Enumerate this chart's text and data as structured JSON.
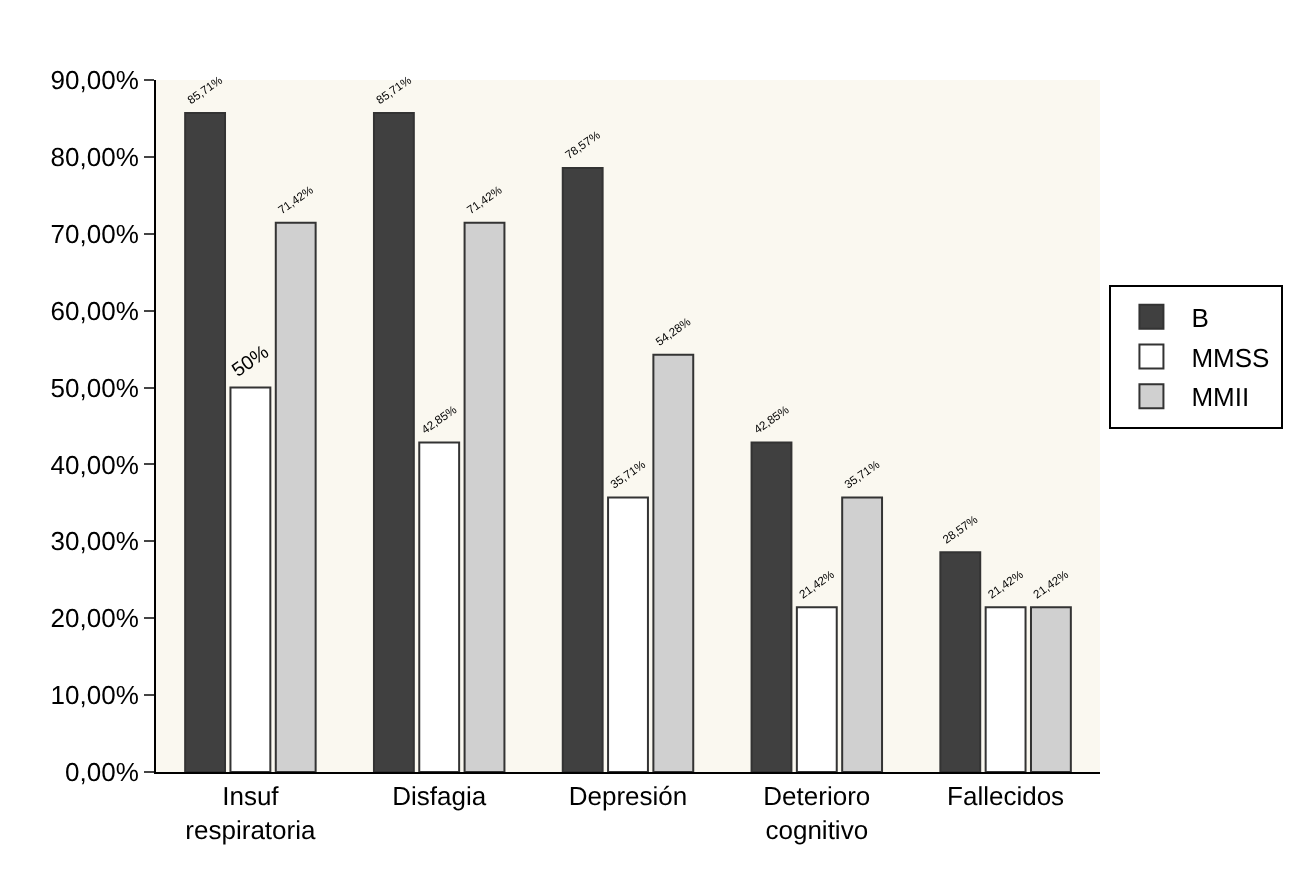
{
  "chart_data": {
    "type": "bar",
    "categories": [
      "Insuf respiratoria",
      "Disfagia",
      "Depresión",
      "Deterioro cognitivo",
      "Fallecidos"
    ],
    "series": [
      {
        "name": "B",
        "color": "#404040",
        "values": [
          85.71,
          85.71,
          78.57,
          42.85,
          28.57
        ],
        "value_labels": [
          "85,71%",
          "85,71%",
          "78,57%",
          "42,85%",
          "28,57%"
        ]
      },
      {
        "name": "MMSS",
        "color": "#ffffff",
        "values": [
          50,
          42.85,
          35.71,
          21.42,
          21.42
        ],
        "value_labels": [
          "50%",
          "42,85%",
          "35,71%",
          "21,42%",
          "21,42%"
        ]
      },
      {
        "name": "MMII",
        "color": "#d0d0d0",
        "values": [
          71.42,
          71.42,
          54.28,
          35.71,
          21.42
        ],
        "value_labels": [
          "71,42%",
          "71,42%",
          "54,28%",
          "35,71%",
          "21,42%"
        ]
      }
    ],
    "ylim": [
      0,
      90
    ],
    "yticks": [
      {
        "value": 0,
        "label": "0,00%"
      },
      {
        "value": 10,
        "label": "10,00%"
      },
      {
        "value": 20,
        "label": "20,00%"
      },
      {
        "value": 30,
        "label": "30,00%"
      },
      {
        "value": 40,
        "label": "40,00%"
      },
      {
        "value": 50,
        "label": "50,00%"
      },
      {
        "value": 60,
        "label": "60,00%"
      },
      {
        "value": 70,
        "label": "70,00%"
      },
      {
        "value": 80,
        "label": "80,00%"
      },
      {
        "value": 90,
        "label": "90,00%"
      }
    ],
    "grid": false,
    "legend": "right"
  }
}
